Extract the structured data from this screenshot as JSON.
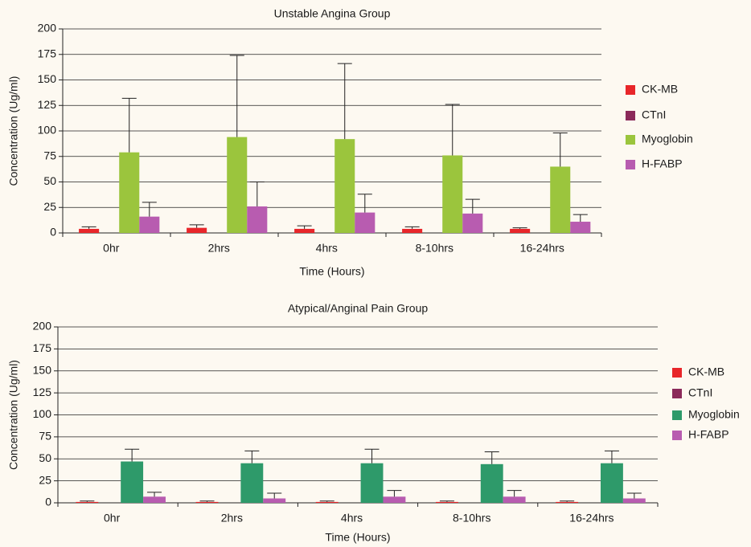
{
  "chart_data": [
    {
      "type": "bar",
      "title": "Unstable Angina Group",
      "x_label": "Time (Hours)",
      "y_label": "Concentration (Ug/ml)",
      "categories": [
        "0hr",
        "2hrs",
        "4hrs",
        "8-10hrs",
        "16-24hrs"
      ],
      "series": [
        {
          "name": "CK-MB",
          "color": "#e8262a",
          "values": [
            4,
            5,
            4,
            4,
            4
          ],
          "errors": [
            2,
            3,
            3,
            2,
            1
          ]
        },
        {
          "name": "CTnI",
          "color": "#8b2a5a",
          "values": [
            0,
            0,
            0,
            0,
            0
          ]
        },
        {
          "name": "Myoglobin",
          "color": "#9bc53d",
          "values": [
            79,
            94,
            92,
            76,
            65
          ],
          "errors": [
            53,
            80,
            74,
            50,
            33
          ]
        },
        {
          "name": "H-FABP",
          "color": "#b85cb0",
          "values": [
            16,
            26,
            20,
            19,
            11
          ],
          "errors": [
            14,
            24,
            18,
            14,
            7
          ]
        }
      ],
      "ylim": [
        0,
        200
      ],
      "yticks": [
        0,
        25,
        50,
        75,
        100,
        125,
        150,
        175,
        200
      ],
      "grid": true
    },
    {
      "type": "bar",
      "title": "Atypical/Anginal Pain Group",
      "x_label": "Time (Hours)",
      "y_label": "Concentration (Ug/ml)",
      "categories": [
        "0hr",
        "2hrs",
        "4hrs",
        "8-10hrs",
        "16-24hrs"
      ],
      "series": [
        {
          "name": "CK-MB",
          "color": "#e8262a",
          "values": [
            1,
            1,
            1,
            1,
            1
          ],
          "errors": [
            1,
            1,
            1,
            1,
            1
          ]
        },
        {
          "name": "CTnI",
          "color": "#8b2a5a",
          "values": [
            0,
            0,
            0,
            0,
            0
          ]
        },
        {
          "name": "Myoglobin",
          "color": "#2e9a6a",
          "values": [
            47,
            45,
            45,
            44,
            45
          ],
          "errors": [
            14,
            14,
            16,
            14,
            14
          ]
        },
        {
          "name": "H-FABP",
          "color": "#b85cb0",
          "values": [
            7,
            5,
            7,
            7,
            5
          ],
          "errors": [
            5,
            6,
            7,
            7,
            6
          ]
        }
      ],
      "ylim": [
        0,
        200
      ],
      "yticks": [
        0,
        25,
        50,
        75,
        100,
        125,
        150,
        175,
        200
      ],
      "grid": true
    }
  ]
}
